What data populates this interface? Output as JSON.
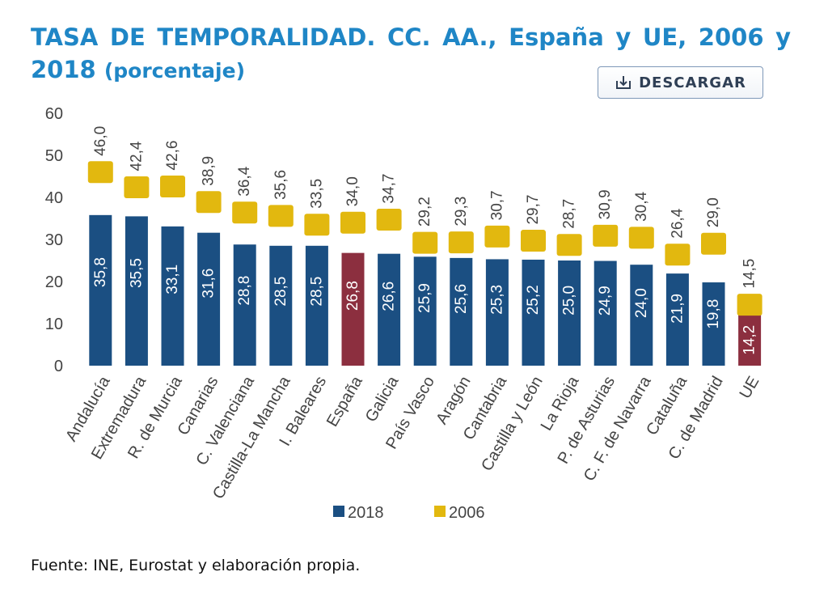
{
  "header": {
    "title": "TASA DE TEMPORALIDAD. CC. AA., España y UE, 2006 y 2018",
    "unit": "(porcentaje)"
  },
  "toolbar": {
    "download_label": "DESCARGAR",
    "download_icon": "download-icon"
  },
  "colors": {
    "title": "#1f86c6",
    "bar_2018": "#1b4f82",
    "bar_highlight": "#8c2f3f",
    "marker_2006": "#e2b80f",
    "text": "#444444"
  },
  "chart_data": {
    "type": "bar",
    "categories": [
      "Andalucía",
      "Extremadura",
      "R. de Murcia",
      "Canarias",
      "C. Valenciana",
      "Castilla-La Mancha",
      "I. Baleares",
      "España",
      "Galicia",
      "País Vasco",
      "Aragón",
      "Cantabria",
      "Castilla y León",
      "La Rioja",
      "P. de Asturias",
      "C. F. de Navarra",
      "Cataluña",
      "C. de Madrid",
      "UE"
    ],
    "series": [
      {
        "name": "2018",
        "values": [
          35.8,
          35.5,
          33.1,
          31.6,
          28.8,
          28.5,
          28.5,
          26.8,
          26.6,
          25.9,
          25.6,
          25.3,
          25.2,
          25.0,
          24.9,
          24.0,
          21.9,
          19.8,
          14.2
        ],
        "labels": [
          "35,8",
          "35,5",
          "33,1",
          "31,6",
          "28,8",
          "28,5",
          "28,5",
          "26,8",
          "26,6",
          "25,9",
          "25,6",
          "25,3",
          "25,2",
          "25,0",
          "24,9",
          "24,0",
          "21,9",
          "19,8",
          "14,2"
        ],
        "highlight": [
          "España",
          "UE"
        ]
      },
      {
        "name": "2006",
        "values": [
          46.0,
          42.4,
          42.6,
          38.9,
          36.4,
          35.6,
          33.5,
          34.0,
          34.7,
          29.2,
          29.3,
          30.7,
          29.7,
          28.7,
          30.9,
          30.4,
          26.4,
          29.0,
          14.5
        ],
        "labels": [
          "46,0",
          "42,4",
          "42,6",
          "38,9",
          "36,4",
          "35,6",
          "33,5",
          "34,0",
          "34,7",
          "29,2",
          "29,3",
          "30,7",
          "29,7",
          "28,7",
          "30,9",
          "30,4",
          "26,4",
          "29,0",
          "14,5"
        ]
      }
    ],
    "ylim": [
      0,
      60
    ],
    "yticks": [
      "0",
      "10",
      "20",
      "30",
      "40",
      "50",
      "60"
    ],
    "legend_position": "bottom",
    "grid": false
  },
  "footer": {
    "source": "Fuente: INE, Eurostat y elaboración propia."
  }
}
